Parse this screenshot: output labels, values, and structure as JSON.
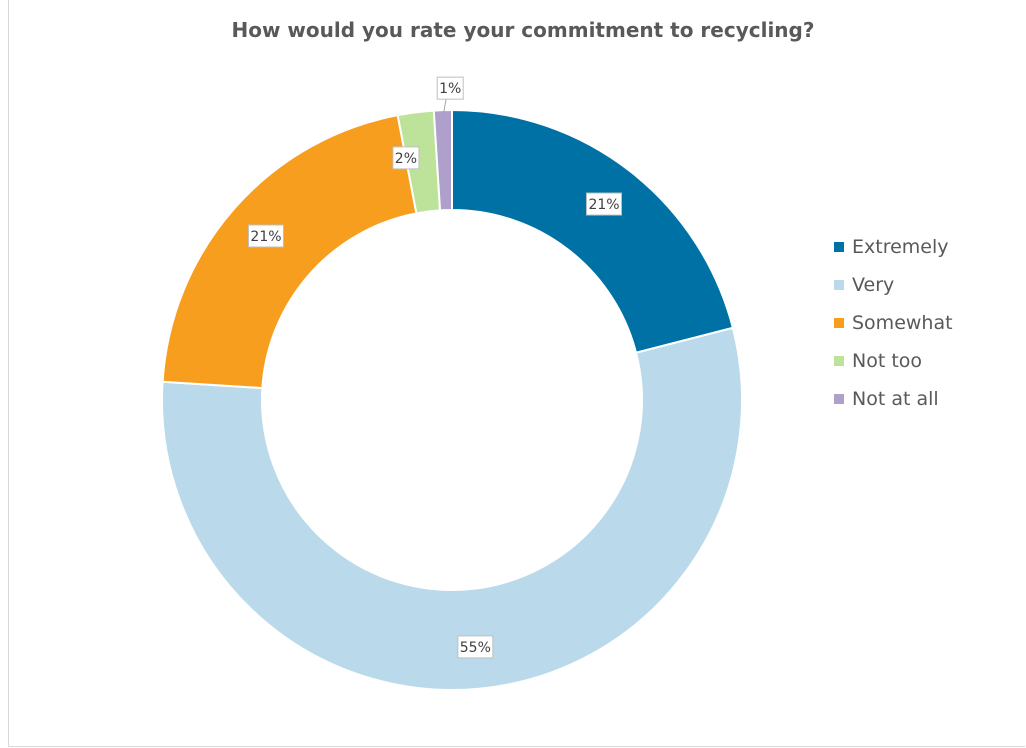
{
  "chart_data": {
    "type": "pie",
    "variant": "donut",
    "title": "How would you rate your commitment to recycling?",
    "categories": [
      "Extremely",
      "Very",
      "Somewhat",
      "Not too",
      "Not at all"
    ],
    "values": [
      21,
      55,
      21,
      2,
      1
    ],
    "labels": [
      "21%",
      "55%",
      "21%",
      "2%",
      "1%"
    ],
    "colors": [
      "#0071a4",
      "#bad9ea",
      "#f89e1f",
      "#bde29a",
      "#ae9fcb"
    ],
    "legend_position": "right"
  }
}
